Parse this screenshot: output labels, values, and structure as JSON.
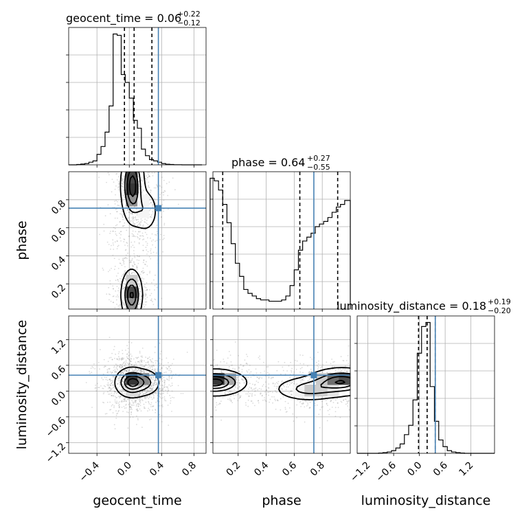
{
  "chart_data": {
    "type": "corner",
    "parameters": [
      "geocent_time",
      "phase",
      "luminosity_distance"
    ],
    "truths": {
      "geocent_time": 0.36,
      "phase": 0.74,
      "luminosity_distance": 0.37
    },
    "truth_color": "#4682b4",
    "ranges": {
      "geocent_time": [
        -0.75,
        0.95
      ],
      "phase": [
        0.02,
        1.0
      ],
      "luminosity_distance": [
        -1.45,
        1.75
      ]
    },
    "ticks": {
      "geocent_time": [
        -0.4,
        0.0,
        0.4,
        0.8
      ],
      "phase": [
        0.2,
        0.4,
        0.6,
        0.8
      ],
      "luminosity_distance": [
        -1.2,
        -0.6,
        0.0,
        0.6,
        1.2
      ]
    },
    "tick_labels": {
      "geocent_time": [
        "−0.4",
        "0.0",
        "0.4",
        "0.8"
      ],
      "phase": [
        "0.2",
        "0.4",
        "0.6",
        "0.8"
      ],
      "luminosity_distance": [
        "−1.2",
        "−0.6",
        "0.0",
        "0.6",
        "1.2"
      ]
    },
    "titles": [
      {
        "param": "geocent_time",
        "label": "geocent_time = 0.06",
        "plus": "+0.22",
        "minus": "−0.12"
      },
      {
        "param": "phase",
        "label": "phase = 0.64",
        "plus": "+0.27",
        "minus": "−0.55"
      },
      {
        "param": "luminosity_distance",
        "label": "luminosity_distance = 0.18",
        "plus": "+0.19",
        "minus": "−0.20"
      }
    ],
    "quantiles": {
      "geocent_time": [
        -0.06,
        0.06,
        0.28
      ],
      "phase": [
        0.09,
        0.64,
        0.91
      ],
      "luminosity_distance": [
        -0.02,
        0.18,
        0.37
      ]
    },
    "histograms": {
      "geocent_time": {
        "edges": [
          -0.75,
          -0.7,
          -0.65,
          -0.6,
          -0.55,
          -0.5,
          -0.45,
          -0.4,
          -0.35,
          -0.3,
          -0.25,
          -0.2,
          -0.15,
          -0.1,
          -0.05,
          0.0,
          0.05,
          0.1,
          0.15,
          0.2,
          0.25,
          0.3,
          0.35,
          0.4,
          0.45,
          0.5,
          0.55,
          0.6,
          0.65,
          0.7,
          0.75,
          0.8,
          0.85,
          0.9
        ],
        "counts": [
          0,
          0,
          0.3,
          0.6,
          1,
          2,
          3,
          8,
          14,
          25,
          45,
          100,
          99,
          69,
          63,
          51,
          34,
          28,
          12,
          7,
          4,
          3,
          2,
          1,
          0.5,
          0.3,
          0.1,
          0.1,
          0,
          0,
          0,
          0,
          0
        ]
      },
      "phase": {
        "edges": [
          0.0,
          0.03,
          0.06,
          0.09,
          0.12,
          0.15,
          0.18,
          0.21,
          0.24,
          0.27,
          0.3,
          0.33,
          0.36,
          0.39,
          0.42,
          0.45,
          0.48,
          0.51,
          0.54,
          0.57,
          0.6,
          0.63,
          0.66,
          0.69,
          0.72,
          0.75,
          0.78,
          0.81,
          0.84,
          0.87,
          0.9,
          0.93,
          0.96,
          1.0
        ],
        "counts": [
          100,
          98,
          91,
          80,
          66,
          50,
          35,
          25,
          15,
          12,
          10,
          8,
          7,
          7,
          6,
          6,
          6,
          7,
          10,
          18,
          30,
          45,
          52,
          55,
          58,
          63,
          65,
          67,
          70,
          74,
          78,
          80,
          83
        ]
      },
      "luminosity_distance": {
        "edges": [
          -1.45,
          -1.35,
          -1.25,
          -1.15,
          -1.05,
          -0.95,
          -0.85,
          -0.75,
          -0.65,
          -0.55,
          -0.45,
          -0.35,
          -0.25,
          -0.15,
          -0.05,
          0.05,
          0.15,
          0.25,
          0.35,
          0.45,
          0.55,
          0.65,
          0.75,
          0.85,
          0.95,
          1.05,
          1.15,
          1.25,
          1.35,
          1.45,
          1.55,
          1.65,
          1.75
        ],
        "counts": [
          0,
          0,
          0,
          0,
          0,
          0.2,
          0.5,
          1,
          2,
          4,
          7,
          14,
          21,
          40,
          75,
          95,
          98,
          50,
          24,
          10,
          5,
          2,
          1,
          0.5,
          0.2,
          0,
          0,
          0,
          0,
          0,
          0,
          0
        ]
      }
    },
    "density": {
      "phase_vs_geocent_time": {
        "modes": [
          {
            "x": 0.04,
            "y": 0.9,
            "sx": 0.07,
            "sy": 0.13,
            "w": 1
          },
          {
            "x": 0.03,
            "y": 0.12,
            "sx": 0.065,
            "sy": 0.09,
            "w": 0.9
          },
          {
            "x": 0.2,
            "y": 0.72,
            "sx": 0.08,
            "sy": 0.08,
            "w": 0.35
          }
        ],
        "contour_levels": [
          0.11,
          0.4,
          0.65,
          0.86
        ]
      },
      "luminosity_distance_vs_geocent_time": {
        "modes": [
          {
            "x": 0.03,
            "y": 0.2,
            "sx": 0.1,
            "sy": 0.17,
            "w": 1
          },
          {
            "x": 0.22,
            "y": 0.2,
            "sx": 0.09,
            "sy": 0.16,
            "w": 0.4
          }
        ],
        "contour_levels": [
          0.11,
          0.4,
          0.65,
          0.86
        ]
      },
      "luminosity_distance_vs_phase": {
        "modes": [
          {
            "x": 0.03,
            "y": 0.2,
            "sx": 0.11,
            "sy": 0.15,
            "w": 1
          },
          {
            "x": 0.94,
            "y": 0.22,
            "sx": 0.12,
            "sy": 0.16,
            "w": 0.85
          },
          {
            "x": 0.7,
            "y": 0.05,
            "sx": 0.12,
            "sy": 0.14,
            "w": 0.5
          }
        ],
        "contour_levels": [
          0.11,
          0.4,
          0.65,
          0.86
        ]
      }
    },
    "grid": true
  }
}
